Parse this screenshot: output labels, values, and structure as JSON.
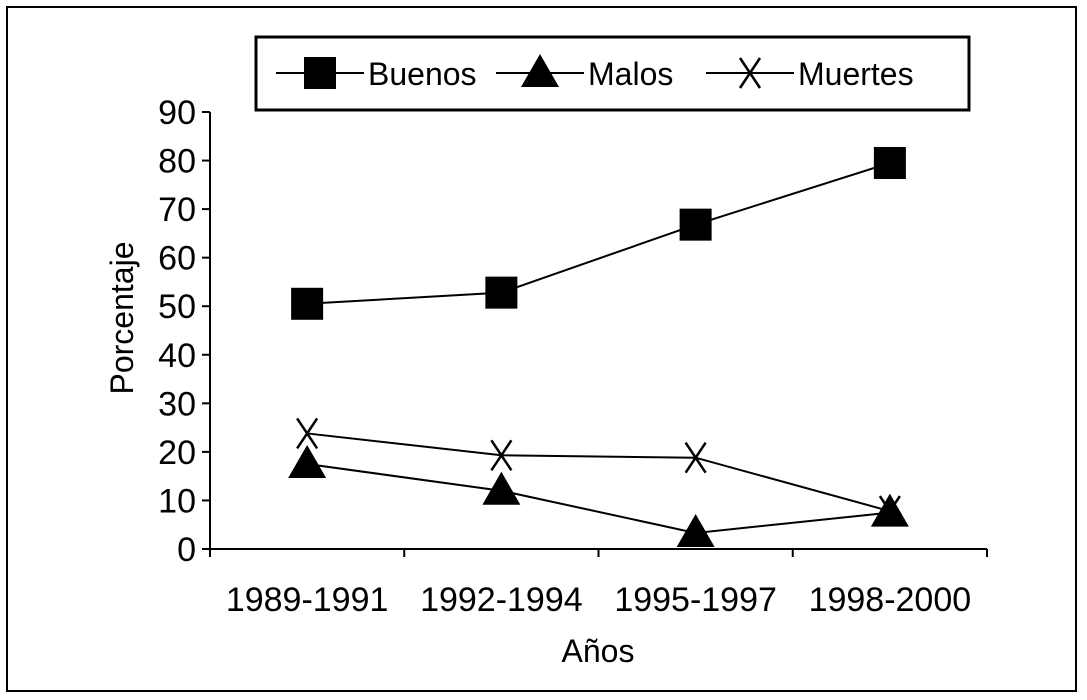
{
  "chart_data": {
    "type": "line",
    "categories": [
      "1989-1991",
      "1992-1994",
      "1995-1997",
      "1998-2000"
    ],
    "xlabel": "Años",
    "ylabel": "Porcentaje",
    "ylim": [
      0,
      90
    ],
    "yticks": [
      0,
      10,
      20,
      30,
      40,
      50,
      60,
      70,
      80,
      90
    ],
    "grid": false,
    "legend_position": "top",
    "series": [
      {
        "name": "Buenos",
        "marker": "square",
        "values": [
          50.5,
          52.8,
          66.8,
          79.5
        ]
      },
      {
        "name": "Malos",
        "marker": "triangle",
        "values": [
          17.5,
          12,
          3.3,
          7.5
        ]
      },
      {
        "name": "Muertes",
        "marker": "x",
        "values": [
          23.8,
          19.3,
          18.8,
          7.8
        ]
      }
    ]
  }
}
